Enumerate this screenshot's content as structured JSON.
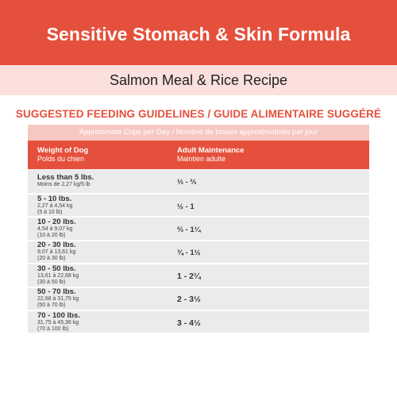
{
  "header": {
    "title": "Sensitive Stomach & Skin Formula",
    "subtitle": "Salmon Meal & Rice Recipe"
  },
  "feeding": {
    "heading": "SUGGESTED FEEDING GUIDELINES / GUIDE ALIMENTAIRE SUGGÉRÉ",
    "units_note": "Approximate Cups per Day / Nombre de tasses approximatives par jour",
    "columns": {
      "weight_en": "Weight of Dog",
      "weight_fr": "Polds du chien",
      "amount_en": "Adult Maintenance",
      "amount_fr": "Maintien adulte"
    },
    "rows": [
      {
        "weight": "Less than 5 lbs.",
        "metric": "Moins de 2,27 kg/5 lb",
        "metric2": "",
        "amount": "⅓ - ⅔"
      },
      {
        "weight": "5 - 10 lbs.",
        "metric": "2,27 à 4,54 kg",
        "metric2": "(5 à 10 lb)",
        "amount": "½ - 1"
      },
      {
        "weight": "10 - 20 lbs.",
        "metric": "4,54 à 9,07 kg",
        "metric2": "(10 à 20 lb)",
        "amount": "⅔ - 1¼"
      },
      {
        "weight": "20 - 30 lbs.",
        "metric": "9,07 à 13,61 kg",
        "metric2": "(20 à 30 lb)",
        "amount": "¾ - 1½"
      },
      {
        "weight": "30 - 50 lbs.",
        "metric": "13,61 à 22,68 kg",
        "metric2": "(30 à 50 lb)",
        "amount": "1 - 2¼"
      },
      {
        "weight": "50 - 70 lbs.",
        "metric": "22,68 à 31,75 kg",
        "metric2": "(50 à 70 lb)",
        "amount": "2 - 3½"
      },
      {
        "weight": "70 - 100 lbs.",
        "metric": "31,75 à 45,36 kg",
        "metric2": "(70 à 100 lb)",
        "amount": "3 - 4½"
      }
    ]
  },
  "colors": {
    "brand_red": "#e5503c",
    "light_pink": "#fbe0dd",
    "row_gray": "#ebebeb"
  }
}
